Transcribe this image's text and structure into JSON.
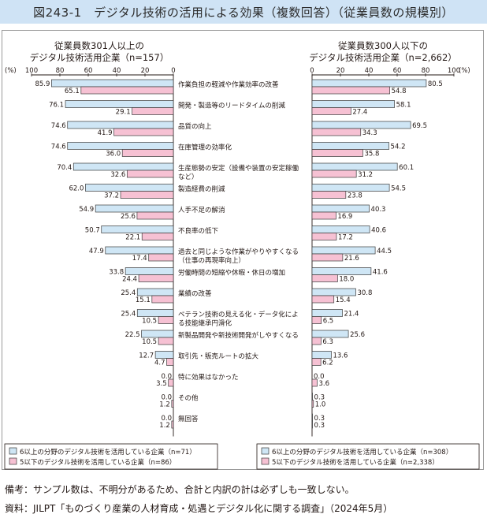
{
  "title": "図243-1　デジタル技術の活用による効果（複数回答）（従業員数の規模別）",
  "chart_data": {
    "type": "bar",
    "panels": [
      {
        "side": "left",
        "title_line1": "従業員数301人以上の",
        "title_line2": "デジタル技術活用企業（n=157）",
        "axis_unit": "(%)",
        "axis_ticks": [
          "100",
          "80",
          "60",
          "40",
          "20",
          "0"
        ],
        "xlim": [
          0,
          100
        ],
        "direction": "reversed",
        "series": [
          {
            "name": "6以上の分野のデジタル技術を活用している企業（n=71）",
            "values": [
              85.9,
              76.1,
              74.6,
              74.6,
              70.4,
              62.0,
              54.9,
              50.7,
              47.9,
              33.8,
              25.4,
              25.4,
              22.5,
              12.7,
              0.0,
              0.0,
              0.0
            ],
            "labels": [
              "85.9",
              "76.1",
              "74.6",
              "74.6",
              "70.4",
              "62.0",
              "54.9",
              "50.7",
              "47.9",
              "33.8",
              "25.4",
              "25.4",
              "22.5",
              "12.7",
              "0.0",
              "0.0",
              "0.0"
            ]
          },
          {
            "name": "5以下のデジタル技術を活用している企業（n=86）",
            "values": [
              65.1,
              29.1,
              41.9,
              36.0,
              32.6,
              37.2,
              25.6,
              22.1,
              17.4,
              24.4,
              15.1,
              10.5,
              10.5,
              4.7,
              3.5,
              1.2,
              1.2
            ],
            "labels": [
              "65.1",
              "29.1",
              "41.9",
              "36.0",
              "32.6",
              "37.2",
              "25.6",
              "22.1",
              "17.4",
              "24.4",
              "15.1",
              "10.5",
              "10.5",
              "4.7",
              "3.5",
              "1.2",
              "1.2"
            ]
          }
        ]
      },
      {
        "side": "right",
        "title_line1": "従業員数300人以下の",
        "title_line2": "デジタル技術活用企業（n=2,662）",
        "axis_unit": "(%)",
        "axis_ticks": [
          "0",
          "20",
          "40",
          "60",
          "80",
          "100"
        ],
        "xlim": [
          0,
          100
        ],
        "direction": "normal",
        "series": [
          {
            "name": "6以上の分野のデジタル技術を活用している企業（n=308）",
            "values": [
              80.5,
              58.1,
              69.5,
              54.2,
              60.1,
              54.5,
              40.3,
              40.6,
              44.5,
              41.6,
              30.8,
              21.4,
              25.6,
              13.6,
              0.0,
              0.3,
              0.3
            ],
            "labels": [
              "80.5",
              "58.1",
              "69.5",
              "54.2",
              "60.1",
              "54.5",
              "40.3",
              "40.6",
              "44.5",
              "41.6",
              "30.8",
              "21.4",
              "25.6",
              "13.6",
              "0.0",
              "0.3",
              "0.3"
            ]
          },
          {
            "name": "5以下のデジタル技術を活用している企業（n=2,338）",
            "values": [
              54.8,
              27.4,
              34.3,
              35.8,
              31.2,
              23.8,
              16.9,
              17.2,
              21.6,
              18.0,
              15.4,
              6.5,
              6.3,
              6.2,
              3.6,
              1.0,
              0.3
            ],
            "labels": [
              "54.8",
              "27.4",
              "34.3",
              "35.8",
              "31.2",
              "23.8",
              "16.9",
              "17.2",
              "21.6",
              "18.0",
              "15.4",
              "6.5",
              "6.3",
              "6.2",
              "3.6",
              "1.0",
              "0.3"
            ]
          }
        ]
      }
    ],
    "categories": [
      [
        "作業負担の軽減や作業効率の改善"
      ],
      [
        "開発・製造等のリードタイムの削減"
      ],
      [
        "品質の向上"
      ],
      [
        "在庫管理の効率化"
      ],
      [
        "生産態勢の安定（設備や装置の安定稼働",
        "など）"
      ],
      [
        "製造経費の削減"
      ],
      [
        "人手不足の解消"
      ],
      [
        "不良率の低下"
      ],
      [
        "過去と同じような作業がやりやすくなる",
        "（仕事の再現率向上）"
      ],
      [
        "労働時間の短縮や休暇・休日の増加"
      ],
      [
        "業績の改善"
      ],
      [
        "ベテラン技術の見える化・データ化によ",
        "る技能継承円滑化"
      ],
      [
        "新製品開発や新技術開発がしやすくなる"
      ],
      [
        "取引先・販売ルートの拡大"
      ],
      [
        "特に効果はなかった"
      ],
      [
        "その他"
      ],
      [
        "無回答"
      ]
    ],
    "colors": {
      "series1_fill": "#cfe6f5",
      "series2_fill": "#f6c1d3",
      "bar_stroke": "#3a3a3a"
    }
  },
  "notes": {
    "line1": "備考：サンプル数は、不明分があるため、合計と内訳の計は必ずしも一致しない。",
    "line2": "資料：JILPT「ものづくり産業の人材育成・処遇とデジタル化に関する調査」（2024年5月）"
  }
}
